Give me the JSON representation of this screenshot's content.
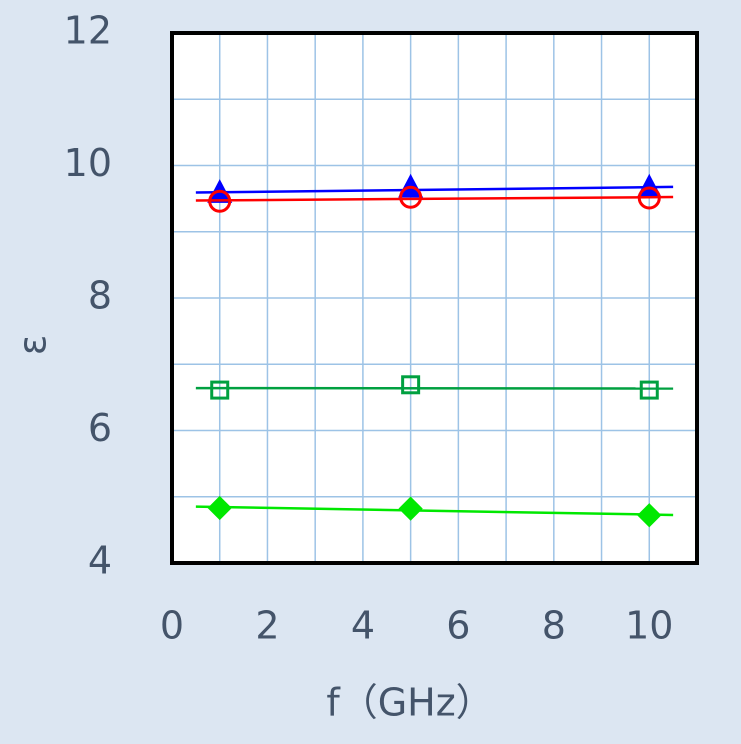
{
  "chart_data": {
    "type": "scatter",
    "x_label": "f（GHz）",
    "y_label": "ε",
    "xlim": [
      0,
      11
    ],
    "ylim": [
      4,
      12
    ],
    "xticks": [
      0,
      2,
      4,
      6,
      8,
      10
    ],
    "yticks": [
      4,
      6,
      8,
      10,
      12
    ],
    "xminorticks": [
      1,
      3,
      5,
      7,
      9
    ],
    "yminorticks": [
      5,
      7,
      9,
      11
    ],
    "grid": true,
    "trendline": true,
    "series": [
      {
        "color": "#0000ff",
        "marker": "triangle",
        "filled": true,
        "x": [
          1,
          5,
          10
        ],
        "values": [
          9.58,
          9.66,
          9.66
        ]
      },
      {
        "color": "#ff0000",
        "marker": "circle",
        "filled": false,
        "x": [
          1,
          5,
          10
        ],
        "values": [
          9.46,
          9.52,
          9.51
        ]
      },
      {
        "color": "#00a040",
        "marker": "square",
        "filled": false,
        "x": [
          1,
          5,
          10
        ],
        "values": [
          6.61,
          6.69,
          6.61
        ]
      },
      {
        "color": "#00e800",
        "marker": "diamond",
        "filled": true,
        "x": [
          1,
          5,
          10
        ],
        "values": [
          4.83,
          4.82,
          4.72
        ]
      }
    ]
  }
}
